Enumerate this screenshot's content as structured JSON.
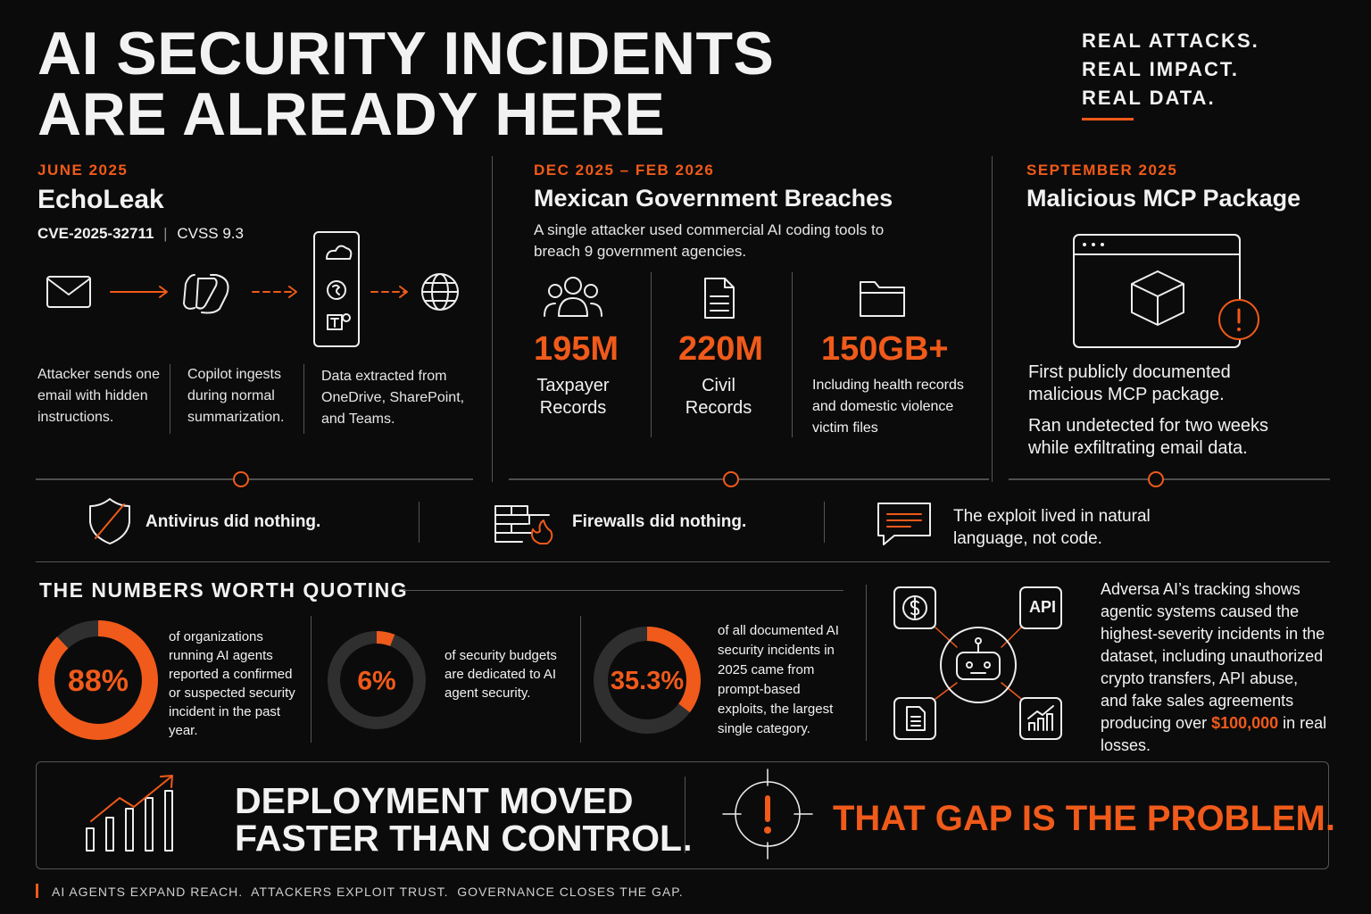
{
  "header": {
    "title_lines": [
      "AI SECURITY INCIDENTS",
      "ARE ALREADY HERE"
    ],
    "tagline": [
      "REAL ATTACKS.",
      "REAL IMPACT.",
      "REAL DATA."
    ]
  },
  "incidents": [
    {
      "date": "JUNE 2025",
      "title": "EchoLeak",
      "cve": "CVE-2025-32711",
      "cvss": "CVSS 9.3",
      "steps": [
        "Attacker sends one email with hidden instructions.",
        "Copilot ingests during normal summarization.",
        "Data extracted from OneDrive, SharePoint, and Teams."
      ]
    },
    {
      "date": "DEC 2025 – FEB 2026",
      "title": "Mexican Government Breaches",
      "description": "A single attacker used commercial AI coding tools to breach 9 government agencies.",
      "figures": [
        {
          "figure": "195M",
          "caption": "Taxpayer Records"
        },
        {
          "figure": "220M",
          "caption": "Civil Records"
        },
        {
          "figure": "150GB+",
          "caption": "Including health records and domestic violence victim files"
        }
      ]
    },
    {
      "date": "SEPTEMBER 2025",
      "title": "Malicious MCP Package",
      "paragraphs": [
        "First publicly documented malicious MCP package.",
        "Ran undetected for two weeks while exfiltrating email data."
      ]
    }
  ],
  "notes": [
    "Antivirus did nothing.",
    "Firewalls did nothing.",
    "The exploit lived in natural language, not code."
  ],
  "numbers": {
    "title": "THE NUMBERS WORTH QUOTING",
    "stats": [
      {
        "value": 88,
        "label": "88%",
        "text": "of organizations running AI agents reported a confirmed or suspected security incident in the past year."
      },
      {
        "value": 6,
        "label": "6%",
        "text": "of security budgets are dedicated to AI agent security."
      },
      {
        "value": 35.3,
        "label": "35.3%",
        "text": "of all documented AI security incidents in 2025 came from prompt-based exploits, the largest single category."
      }
    ],
    "agentic": {
      "icon_label": "API",
      "text_before": "Adversa AI’s tracking shows agentic systems caused the highest-severity incidents in the dataset, including unauthorized crypto transfers, API abuse, and fake sales agreements producing over ",
      "amount": "$100,000",
      "text_after": " in real losses."
    }
  },
  "banner": {
    "left_lines": [
      "DEPLOYMENT MOVED",
      "FASTER THAN CONTROL."
    ],
    "right": "THAT GAP IS THE PROBLEM."
  },
  "footer": "AI AGENTS EXPAND REACH.  ATTACKERS EXPLOIT TRUST.  GOVERNANCE CLOSES THE GAP."
}
